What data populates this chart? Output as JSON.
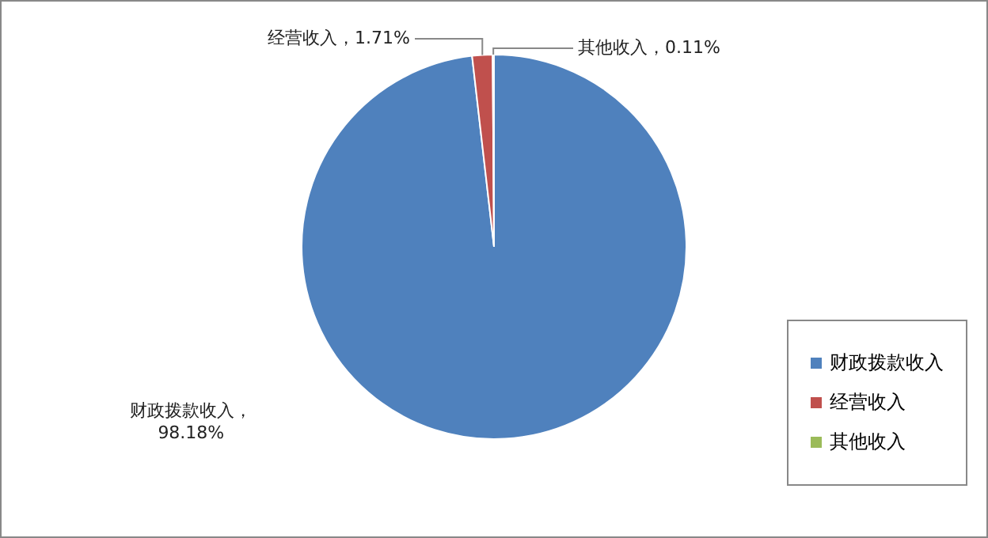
{
  "chart_data": {
    "type": "pie",
    "categories": [
      "财政拨款收入",
      "经营收入",
      "其他收入"
    ],
    "values": [
      98.18,
      1.71,
      0.11
    ],
    "colors": [
      "#4f81bd",
      "#c0504d",
      "#9bbb59"
    ],
    "value_labels": [
      "财政拨款收入，98.18%",
      "经营收入，1.71%",
      "其他收入，0.11%"
    ],
    "legend": "bottom right"
  }
}
